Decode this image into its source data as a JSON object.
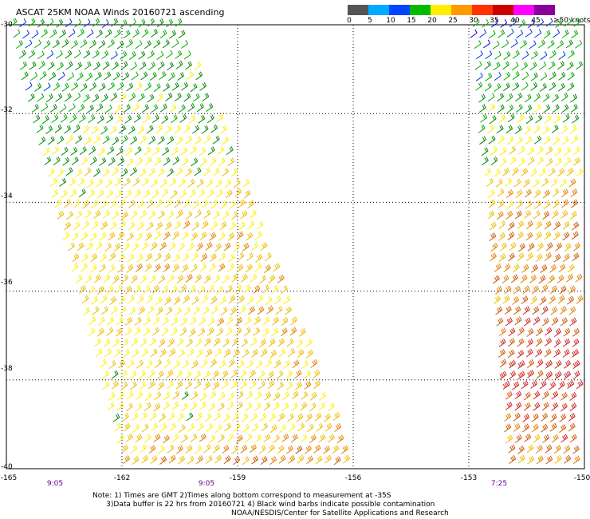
{
  "title": "ASCAT 25KM NOAA Winds 20160721 ascending",
  "legend": {
    "ticks": [
      "0",
      "5",
      "10",
      "15",
      "20",
      "25",
      "30",
      "35",
      "40",
      "45"
    ],
    "last_tick": "≥50 knots",
    "colors": [
      "#555555",
      "#00aaff",
      "#0044ff",
      "#00bb00",
      "#ffee00",
      "#ff9900",
      "#ff3300",
      "#cc0000",
      "#ff00ff",
      "#880099"
    ]
  },
  "latitudes": [
    "-30",
    "-32",
    "-34",
    "-36",
    "-38",
    "-40"
  ],
  "longitudes": [
    "-165",
    "-162",
    "-159",
    "-156",
    "-153",
    "-150"
  ],
  "pass_times": [
    "9:05",
    "9:05",
    "7:25"
  ],
  "notes": {
    "line1": "Note: 1) Times are GMT 2)Times along bottom correspond to measurement at -35S",
    "line2": "      3)Data buffer is 22 hrs from 20160721 4) Black wind barbs indicate possible contamination",
    "credit": "NOAA/NESDIS/Center for Satellite Applications and Research"
  },
  "chart_data": {
    "type": "wind-barb map",
    "lat_range": [
      -40,
      -30
    ],
    "lon_range": [
      -165,
      -150
    ],
    "units": "knots",
    "grid": true,
    "swaths": [
      {
        "pass_time": "9:05",
        "lon_west_at_top": -165,
        "lon_west_at_bottom": -162,
        "lon_east_at_top": -160.5,
        "lon_east_at_bottom": -156,
        "speed_pattern": [
          [
            -30,
            15
          ],
          [
            -32,
            17
          ],
          [
            -33.5,
            21
          ],
          [
            -35,
            24
          ],
          [
            -37,
            23
          ],
          [
            -39,
            22
          ],
          [
            -40,
            27
          ]
        ]
      },
      {
        "pass_time": "7:25",
        "lon_west_at_top": -153,
        "lon_west_at_bottom": -152,
        "lon_east_at_top": -150,
        "lon_east_at_bottom": -150,
        "speed_pattern": [
          [
            -30,
            12
          ],
          [
            -31.5,
            16
          ],
          [
            -33,
            21
          ],
          [
            -34.5,
            27
          ],
          [
            -36,
            28
          ],
          [
            -38,
            33
          ],
          [
            -40,
            27
          ]
        ]
      }
    ]
  }
}
